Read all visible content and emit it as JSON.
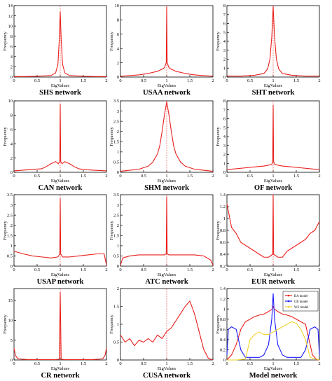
{
  "colors": {
    "curve": "#e8201c",
    "axis": "#000000",
    "blue": "#1a1aff",
    "yellow": "#f2d22a"
  },
  "chart_data": [
    {
      "type": "line",
      "title": "SHS network",
      "xlabel": "EigValues",
      "ylabel": "Frequency",
      "xlim": [
        0,
        2
      ],
      "ylim": [
        0,
        14
      ],
      "xticks": [
        "0",
        "0.5",
        "1",
        "1.5",
        "2"
      ],
      "yticks": [
        "0",
        "2",
        "4",
        "6",
        "8",
        "10",
        "12",
        "14"
      ],
      "series": [
        {
          "x": [
            0,
            0.2,
            0.5,
            0.8,
            0.9,
            0.95,
            0.98,
            1.0,
            1.02,
            1.05,
            1.1,
            1.2,
            1.5,
            1.8,
            2.0
          ],
          "y": [
            0.1,
            0.1,
            0.15,
            0.3,
            0.8,
            2.5,
            7.5,
            12.8,
            7.5,
            2.5,
            0.8,
            0.3,
            0.15,
            0.1,
            0.1
          ]
        }
      ]
    },
    {
      "type": "line",
      "title": "USAA network",
      "xlabel": "EigValues",
      "ylabel": "Frequency",
      "xlim": [
        0,
        2
      ],
      "ylim": [
        0,
        10
      ],
      "xticks": [
        "0",
        "0.5",
        "1",
        "1.5",
        "2"
      ],
      "yticks": [
        "0",
        "2",
        "4",
        "6",
        "8",
        "10"
      ],
      "series": [
        {
          "x": [
            0,
            0.2,
            0.4,
            0.6,
            0.8,
            0.9,
            0.95,
            0.99,
            1.0,
            1.01,
            1.05,
            1.1,
            1.2,
            1.4,
            1.6,
            1.8,
            2.0
          ],
          "y": [
            0.1,
            0.2,
            0.3,
            0.5,
            0.8,
            1.1,
            1.3,
            2.0,
            9.8,
            2.0,
            1.3,
            1.1,
            0.8,
            0.5,
            0.3,
            0.2,
            0.1
          ]
        }
      ]
    },
    {
      "type": "line",
      "title": "SHT network",
      "xlabel": "EigValues",
      "ylabel": "Frequency",
      "xlim": [
        0,
        2
      ],
      "ylim": [
        0,
        8
      ],
      "xticks": [
        "0",
        "0.5",
        "1",
        "1.5",
        "2"
      ],
      "yticks": [
        "0",
        "1",
        "2",
        "3",
        "4",
        "5",
        "6",
        "7",
        "8"
      ],
      "series": [
        {
          "x": [
            0,
            0.3,
            0.6,
            0.8,
            0.88,
            0.93,
            0.97,
            1.0,
            1.03,
            1.07,
            1.12,
            1.2,
            1.4,
            1.7,
            2.0
          ],
          "y": [
            0.1,
            0.1,
            0.2,
            0.4,
            0.9,
            2.0,
            4.5,
            7.9,
            4.5,
            2.0,
            0.9,
            0.4,
            0.2,
            0.1,
            0.1
          ]
        }
      ]
    },
    {
      "type": "line",
      "title": "CAN network",
      "xlabel": "EigValues",
      "ylabel": "Frequency",
      "xlim": [
        0,
        2
      ],
      "ylim": [
        0,
        10
      ],
      "xticks": [
        "0",
        "0.5",
        "1",
        "1.5",
        "2"
      ],
      "yticks": [
        "0",
        "2",
        "4",
        "6",
        "8",
        "10"
      ],
      "series": [
        {
          "x": [
            0,
            0.2,
            0.4,
            0.6,
            0.7,
            0.8,
            0.9,
            0.96,
            0.99,
            1.0,
            1.01,
            1.04,
            1.1,
            1.2,
            1.3,
            1.4,
            1.5,
            1.7,
            2.0
          ],
          "y": [
            0.2,
            0.3,
            0.4,
            0.5,
            0.8,
            1.2,
            1.5,
            1.2,
            1.5,
            9.5,
            1.5,
            1.2,
            1.5,
            1.2,
            0.8,
            0.5,
            0.4,
            0.3,
            0.2
          ]
        }
      ]
    },
    {
      "type": "line",
      "title": "SHM network",
      "xlabel": "EigValues",
      "ylabel": "Frequency",
      "xlim": [
        0,
        2
      ],
      "ylim": [
        0,
        3.5
      ],
      "xticks": [
        "0",
        "0.5",
        "1",
        "1.5",
        "2"
      ],
      "yticks": [
        "0",
        "0.5",
        "1",
        "1.5",
        "2",
        "2.5",
        "3",
        "3.5"
      ],
      "series": [
        {
          "x": [
            0,
            0.2,
            0.4,
            0.6,
            0.7,
            0.8,
            0.85,
            0.9,
            0.95,
            1.0,
            1.05,
            1.1,
            1.15,
            1.2,
            1.3,
            1.4,
            1.6,
            1.8,
            2.0
          ],
          "y": [
            0.05,
            0.1,
            0.15,
            0.3,
            0.5,
            0.9,
            1.3,
            2.0,
            2.8,
            3.45,
            2.8,
            2.0,
            1.3,
            0.9,
            0.5,
            0.3,
            0.15,
            0.1,
            0.05
          ]
        }
      ]
    },
    {
      "type": "line",
      "title": "OF network",
      "xlabel": "EigValues",
      "ylabel": "Frequency",
      "xlim": [
        0,
        2
      ],
      "ylim": [
        0,
        8
      ],
      "xticks": [
        "0",
        "0.5",
        "1",
        "1.5",
        "2"
      ],
      "yticks": [
        "0",
        "1",
        "2",
        "3",
        "4",
        "5",
        "6",
        "7",
        "8"
      ],
      "series": [
        {
          "x": [
            0,
            0.2,
            0.4,
            0.6,
            0.8,
            0.9,
            0.97,
            0.99,
            1.0,
            1.01,
            1.03,
            1.1,
            1.2,
            1.4,
            1.6,
            1.8,
            2.0
          ],
          "y": [
            0.3,
            0.4,
            0.5,
            0.6,
            0.7,
            0.8,
            0.9,
            1.2,
            7.5,
            1.2,
            0.9,
            0.8,
            0.7,
            0.6,
            0.5,
            0.4,
            0.3
          ]
        }
      ]
    },
    {
      "type": "line",
      "title": "USAP network",
      "xlabel": "EigValues",
      "ylabel": "Frequency",
      "xlim": [
        0,
        2
      ],
      "ylim": [
        0,
        3.5
      ],
      "xticks": [
        "0",
        "0.5",
        "1",
        "1.5",
        "2"
      ],
      "yticks": [
        "0",
        "0.5",
        "1",
        "1.5",
        "2",
        "2.5",
        "3",
        "3.5"
      ],
      "series": [
        {
          "x": [
            0,
            0.05,
            0.2,
            0.4,
            0.6,
            0.8,
            0.95,
            0.99,
            1.0,
            1.01,
            1.05,
            1.2,
            1.4,
            1.6,
            1.8,
            1.95,
            2.0
          ],
          "y": [
            0.7,
            0.7,
            0.6,
            0.5,
            0.45,
            0.4,
            0.45,
            0.6,
            3.3,
            0.6,
            0.45,
            0.45,
            0.5,
            0.55,
            0.6,
            0.6,
            0.05
          ]
        }
      ]
    },
    {
      "type": "line",
      "title": "ATC network",
      "xlabel": "EigValues",
      "ylabel": "Frequency",
      "xlim": [
        0,
        2
      ],
      "ylim": [
        0,
        3.5
      ],
      "xticks": [
        "0",
        "0.5",
        "1",
        "1.5",
        "2"
      ],
      "yticks": [
        "0",
        "0.5",
        "1",
        "1.5",
        "2",
        "2.5",
        "3",
        "3.5"
      ],
      "series": [
        {
          "x": [
            0,
            0.05,
            0.2,
            0.4,
            0.6,
            0.8,
            0.95,
            0.99,
            1.0,
            1.01,
            1.05,
            1.2,
            1.4,
            1.6,
            1.8,
            1.95,
            2.0
          ],
          "y": [
            0.05,
            0.4,
            0.5,
            0.55,
            0.55,
            0.55,
            0.55,
            0.6,
            3.4,
            0.6,
            0.55,
            0.55,
            0.55,
            0.55,
            0.5,
            0.3,
            0.05
          ]
        }
      ]
    },
    {
      "type": "line",
      "title": "EUR network",
      "xlabel": "EigValues",
      "ylabel": "Frequency",
      "xlim": [
        0,
        2
      ],
      "ylim": [
        0.2,
        1.4
      ],
      "xticks": [
        "0",
        "0.5",
        "1",
        "1.5",
        "2"
      ],
      "yticks": [
        "0.2",
        "0.4",
        "0.6",
        "0.8",
        "1",
        "1.2",
        "1.4"
      ],
      "series": [
        {
          "x": [
            0,
            0.1,
            0.2,
            0.3,
            0.4,
            0.5,
            0.6,
            0.7,
            0.8,
            0.9,
            0.99,
            1.0,
            1.01,
            1.1,
            1.2,
            1.3,
            1.4,
            1.5,
            1.6,
            1.7,
            1.8,
            1.9,
            2.0
          ],
          "y": [
            1.25,
            0.85,
            0.75,
            0.6,
            0.55,
            0.5,
            0.45,
            0.4,
            0.35,
            0.35,
            0.4,
            1.4,
            0.4,
            0.35,
            0.35,
            0.45,
            0.5,
            0.55,
            0.6,
            0.65,
            0.75,
            0.8,
            0.95
          ]
        }
      ]
    },
    {
      "type": "line",
      "title": "CR network",
      "xlabel": "EigValues",
      "ylabel": "Frequency",
      "xlim": [
        0,
        2
      ],
      "ylim": [
        0,
        18
      ],
      "xticks": [
        "0",
        "0.5",
        "1",
        "1.5",
        "2"
      ],
      "yticks": [
        "0",
        "5",
        "10",
        "15"
      ],
      "series": [
        {
          "x": [
            0,
            0.03,
            0.08,
            0.3,
            0.6,
            0.9,
            0.98,
            1.0,
            1.02,
            1.1,
            1.4,
            1.7,
            1.92,
            1.97,
            2.0
          ],
          "y": [
            3.0,
            1.2,
            0.3,
            0.1,
            0.1,
            0.1,
            0.2,
            17.0,
            0.2,
            0.1,
            0.1,
            0.1,
            0.3,
            1.2,
            3.0
          ]
        }
      ]
    },
    {
      "type": "line",
      "title": "CUSA network",
      "xlabel": "EigValues",
      "ylabel": "Frequency",
      "xlim": [
        0,
        2
      ],
      "ylim": [
        0,
        2
      ],
      "xticks": [
        "0",
        "0.5",
        "1",
        "1.5",
        "2"
      ],
      "yticks": [
        "0",
        "0.5",
        "1",
        "1.5",
        "2"
      ],
      "series": [
        {
          "x": [
            0,
            0.1,
            0.2,
            0.3,
            0.4,
            0.5,
            0.6,
            0.7,
            0.8,
            0.9,
            1.0,
            1.1,
            1.2,
            1.3,
            1.4,
            1.5,
            1.6,
            1.7,
            1.8,
            1.9,
            2.0
          ],
          "y": [
            0.7,
            0.5,
            0.6,
            0.4,
            0.55,
            0.5,
            0.6,
            0.5,
            0.7,
            0.6,
            0.8,
            0.9,
            1.1,
            1.3,
            1.5,
            1.65,
            1.3,
            0.8,
            0.3,
            0.05,
            0.0
          ]
        }
      ]
    },
    {
      "type": "line",
      "title": "Model network",
      "xlabel": "EigValues",
      "ylabel": "Frequency",
      "xlim": [
        0,
        2
      ],
      "ylim": [
        0,
        1.4
      ],
      "xticks": [
        "0",
        "0.5",
        "1",
        "1.5",
        "2"
      ],
      "yticks": [
        "0",
        "0.2",
        "0.4",
        "0.6",
        "0.8",
        "1",
        "1.2",
        "1.4"
      ],
      "legend": {
        "placement": "top-right"
      },
      "series": [
        {
          "name": "BA model",
          "color": "#e8201c",
          "x": [
            0,
            0.05,
            0.1,
            0.2,
            0.3,
            0.4,
            0.5,
            0.6,
            0.7,
            0.8,
            0.9,
            0.98,
            1.0,
            1.02,
            1.1,
            1.2,
            1.3,
            1.4,
            1.5,
            1.6,
            1.7,
            1.8,
            1.85,
            1.9,
            1.95,
            2.0
          ],
          "y": [
            0.0,
            0.05,
            0.1,
            0.3,
            0.6,
            0.75,
            0.8,
            0.85,
            0.88,
            0.9,
            0.95,
            1.0,
            1.05,
            1.0,
            0.95,
            0.9,
            0.88,
            0.85,
            0.8,
            0.75,
            0.7,
            0.3,
            0.1,
            0.05,
            0.0,
            0.0
          ]
        },
        {
          "name": "CR model",
          "color": "#1a1aff",
          "x": [
            0,
            0.03,
            0.1,
            0.2,
            0.3,
            0.4,
            0.5,
            0.6,
            0.7,
            0.8,
            0.9,
            0.97,
            1.0,
            1.03,
            1.1,
            1.2,
            1.3,
            1.4,
            1.5,
            1.6,
            1.7,
            1.8,
            1.9,
            1.97,
            2.0
          ],
          "y": [
            0.1,
            0.6,
            0.65,
            0.6,
            0.2,
            0.05,
            0.05,
            0.05,
            0.05,
            0.1,
            0.3,
            0.8,
            1.3,
            0.8,
            0.3,
            0.1,
            0.05,
            0.05,
            0.05,
            0.05,
            0.2,
            0.6,
            0.65,
            0.6,
            0.1
          ]
        },
        {
          "name": "WS model",
          "color": "#f2d22a",
          "x": [
            0,
            0.2,
            0.4,
            0.5,
            0.6,
            0.7,
            0.8,
            0.9,
            1.0,
            1.1,
            1.2,
            1.3,
            1.4,
            1.5,
            1.6,
            1.7,
            1.8,
            2.0
          ],
          "y": [
            0.0,
            0.0,
            0.02,
            0.4,
            0.5,
            0.55,
            0.5,
            0.5,
            0.55,
            0.6,
            0.65,
            0.7,
            0.75,
            0.72,
            0.6,
            0.4,
            0.05,
            0.0
          ]
        }
      ]
    }
  ]
}
